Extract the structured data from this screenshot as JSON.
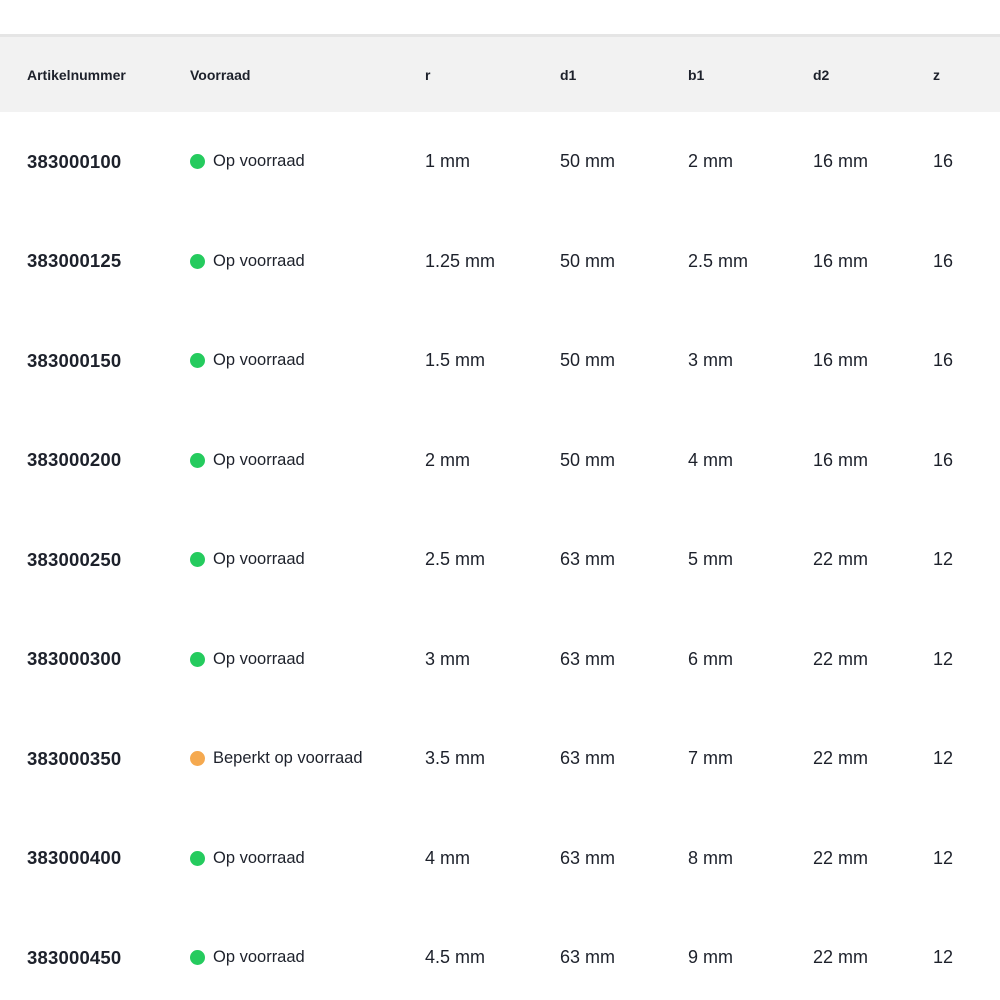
{
  "table": {
    "columns": [
      {
        "key": "artikelnummer",
        "label": "Artikelnummer"
      },
      {
        "key": "voorraad",
        "label": "Voorraad"
      },
      {
        "key": "r",
        "label": "r"
      },
      {
        "key": "d1",
        "label": "d1"
      },
      {
        "key": "b1",
        "label": "b1"
      },
      {
        "key": "d2",
        "label": "d2"
      },
      {
        "key": "z",
        "label": "z"
      }
    ],
    "rows": [
      {
        "artikelnummer": "383000100",
        "stock_status": "in-stock",
        "stock_label": "Op voorraad",
        "r": "1 mm",
        "d1": "50 mm",
        "b1": "2 mm",
        "d2": "16 mm",
        "z": "16"
      },
      {
        "artikelnummer": "383000125",
        "stock_status": "in-stock",
        "stock_label": "Op voorraad",
        "r": "1.25 mm",
        "d1": "50 mm",
        "b1": "2.5 mm",
        "d2": "16 mm",
        "z": "16"
      },
      {
        "artikelnummer": "383000150",
        "stock_status": "in-stock",
        "stock_label": "Op voorraad",
        "r": "1.5 mm",
        "d1": "50 mm",
        "b1": "3 mm",
        "d2": "16 mm",
        "z": "16"
      },
      {
        "artikelnummer": "383000200",
        "stock_status": "in-stock",
        "stock_label": "Op voorraad",
        "r": "2 mm",
        "d1": "50 mm",
        "b1": "4 mm",
        "d2": "16 mm",
        "z": "16"
      },
      {
        "artikelnummer": "383000250",
        "stock_status": "in-stock",
        "stock_label": "Op voorraad",
        "r": "2.5 mm",
        "d1": "63 mm",
        "b1": "5 mm",
        "d2": "22 mm",
        "z": "12"
      },
      {
        "artikelnummer": "383000300",
        "stock_status": "in-stock",
        "stock_label": "Op voorraad",
        "r": "3 mm",
        "d1": "63 mm",
        "b1": "6 mm",
        "d2": "22 mm",
        "z": "12"
      },
      {
        "artikelnummer": "383000350",
        "stock_status": "limited",
        "stock_label": "Beperkt op voorraad",
        "r": "3.5 mm",
        "d1": "63 mm",
        "b1": "7 mm",
        "d2": "22 mm",
        "z": "12"
      },
      {
        "artikelnummer": "383000400",
        "stock_status": "in-stock",
        "stock_label": "Op voorraad",
        "r": "4 mm",
        "d1": "63 mm",
        "b1": "8 mm",
        "d2": "22 mm",
        "z": "12"
      },
      {
        "artikelnummer": "383000450",
        "stock_status": "in-stock",
        "stock_label": "Op voorraad",
        "r": "4.5 mm",
        "d1": "63 mm",
        "b1": "9 mm",
        "d2": "22 mm",
        "z": "12"
      }
    ]
  },
  "colors": {
    "in_stock_dot": "#25cb5e",
    "limited_stock_dot": "#f5a94f",
    "header_background": "#f2f2f2",
    "header_divider": "#e5e5e5",
    "text": "#1d212b"
  },
  "icons": {
    "in_stock": "status-dot-green-icon",
    "limited": "status-dot-orange-icon"
  }
}
